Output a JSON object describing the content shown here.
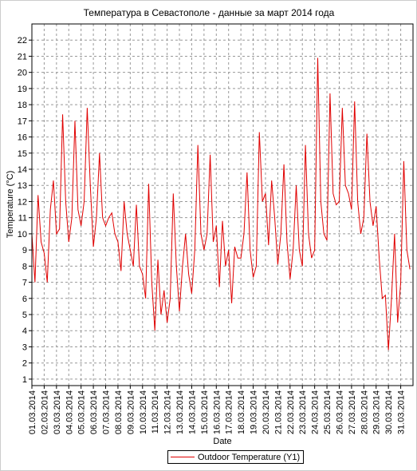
{
  "chart_data": {
    "type": "line",
    "title": "Температура в Севастополе - данные за март 2014 года",
    "x_label": "Date",
    "y_label": "Temperature (°C)",
    "categories": [
      "01.03.2014",
      null,
      null,
      null,
      "02.03.2014",
      null,
      null,
      null,
      "03.03.2014",
      null,
      null,
      null,
      "04.03.2014",
      null,
      null,
      null,
      "05.03.2014",
      null,
      null,
      null,
      "06.03.2014",
      null,
      null,
      null,
      "07.03.2014",
      null,
      null,
      null,
      "08.03.2014",
      null,
      null,
      null,
      "09.03.2014",
      null,
      null,
      null,
      "10.03.2014",
      null,
      null,
      null,
      "11.03.2014",
      null,
      null,
      null,
      "12.03.2014",
      null,
      null,
      null,
      "13.03.2014",
      null,
      null,
      null,
      "14.03.2014",
      null,
      null,
      null,
      "15.03.2014",
      null,
      null,
      null,
      "16.03.2014",
      null,
      null,
      null,
      "17.03.2014",
      null,
      null,
      null,
      "18.03.2014",
      null,
      null,
      null,
      "19.03.2014",
      null,
      null,
      null,
      "20.03.2014",
      null,
      null,
      null,
      "21.03.2014",
      null,
      null,
      null,
      "22.03.2014",
      null,
      null,
      null,
      "23.03.2014",
      null,
      null,
      null,
      "24.03.2014",
      null,
      null,
      null,
      "25.03.2014",
      null,
      null,
      null,
      "26.03.2014",
      null,
      null,
      null,
      "27.03.2014",
      null,
      null,
      null,
      "28.03.2014",
      null,
      null,
      null,
      "29.03.2014",
      null,
      null,
      null,
      "30.03.2014",
      null,
      null,
      null,
      "31.03.2014",
      null,
      null,
      null
    ],
    "series": [
      {
        "name": "Outdoor Temperature (Y1)",
        "color": "#e00000",
        "values": [
          10,
          7,
          12.4,
          9.5,
          8.8,
          7,
          11.5,
          13.3,
          10,
          10.3,
          17.4,
          12,
          9.5,
          11,
          17,
          11.5,
          10.5,
          12,
          17.8,
          13,
          9.2,
          11,
          15,
          11,
          10.5,
          11,
          11.3,
          10,
          9.5,
          7.7,
          12,
          10,
          9,
          8,
          11.8,
          8,
          7.5,
          6,
          13.1,
          7,
          4,
          8.4,
          5,
          6.5,
          4.5,
          6,
          12.5,
          8,
          5.2,
          8,
          10,
          7.5,
          6.3,
          9,
          15.5,
          10,
          9,
          10,
          14.9,
          9.5,
          10.5,
          6.7,
          10.8,
          8,
          9,
          5.7,
          9.2,
          8.5,
          8.5,
          10,
          13.8,
          9,
          7.3,
          8,
          16.3,
          12,
          12.5,
          9.3,
          13.3,
          11,
          8.1,
          10,
          14.3,
          9.5,
          7.2,
          9,
          13,
          9,
          8,
          15.5,
          10,
          8.5,
          9,
          20.9,
          12,
          10,
          9.6,
          18.7,
          12.5,
          11.8,
          12,
          17.8,
          13,
          12.5,
          11.5,
          18.2,
          12,
          10,
          11,
          16.2,
          12,
          10.5,
          11.7,
          8.5,
          6,
          6.2,
          2.8,
          6,
          10,
          4.5,
          7,
          14.5,
          9,
          7.8
        ]
      }
    ],
    "ylim": [
      0.6,
      23
    ],
    "yticks": [
      1,
      2,
      3,
      4,
      5,
      6,
      7,
      8,
      9,
      10,
      11,
      12,
      13,
      14,
      15,
      16,
      17,
      18,
      19,
      20,
      21,
      22
    ],
    "grid": true
  }
}
